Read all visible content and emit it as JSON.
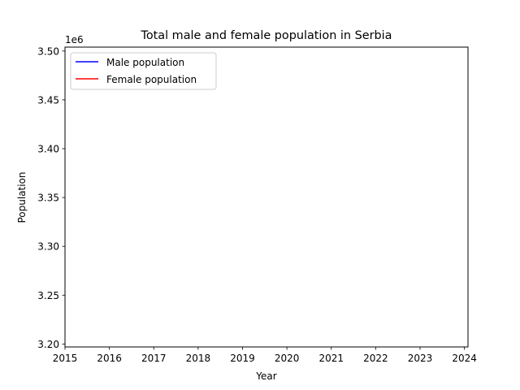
{
  "chart_data": {
    "type": "line",
    "title": "Total male and female population in Serbia",
    "xlabel": "Year",
    "ylabel": "Population",
    "y_offset_label": "1e6",
    "xlim": [
      2015,
      2024.08
    ],
    "ylim": [
      3.197,
      3.504
    ],
    "x_ticks": [
      2015,
      2016,
      2017,
      2018,
      2019,
      2020,
      2021,
      2022,
      2023,
      2024
    ],
    "x_tick_labels": [
      "2015",
      "2016",
      "2017",
      "2018",
      "2019",
      "2020",
      "2021",
      "2022",
      "2023",
      "2024"
    ],
    "y_ticks": [
      3.2,
      3.25,
      3.3,
      3.35,
      3.4,
      3.45,
      3.5
    ],
    "y_tick_labels": [
      "3.20",
      "3.25",
      "3.30",
      "3.35",
      "3.40",
      "3.45",
      "3.50"
    ],
    "grid": false,
    "legend_position": "top-left",
    "series": [
      {
        "name": "Male population",
        "color": "#0000ff",
        "x": [],
        "values": []
      },
      {
        "name": "Female population",
        "color": "#ff0000",
        "x": [],
        "values": []
      }
    ]
  }
}
